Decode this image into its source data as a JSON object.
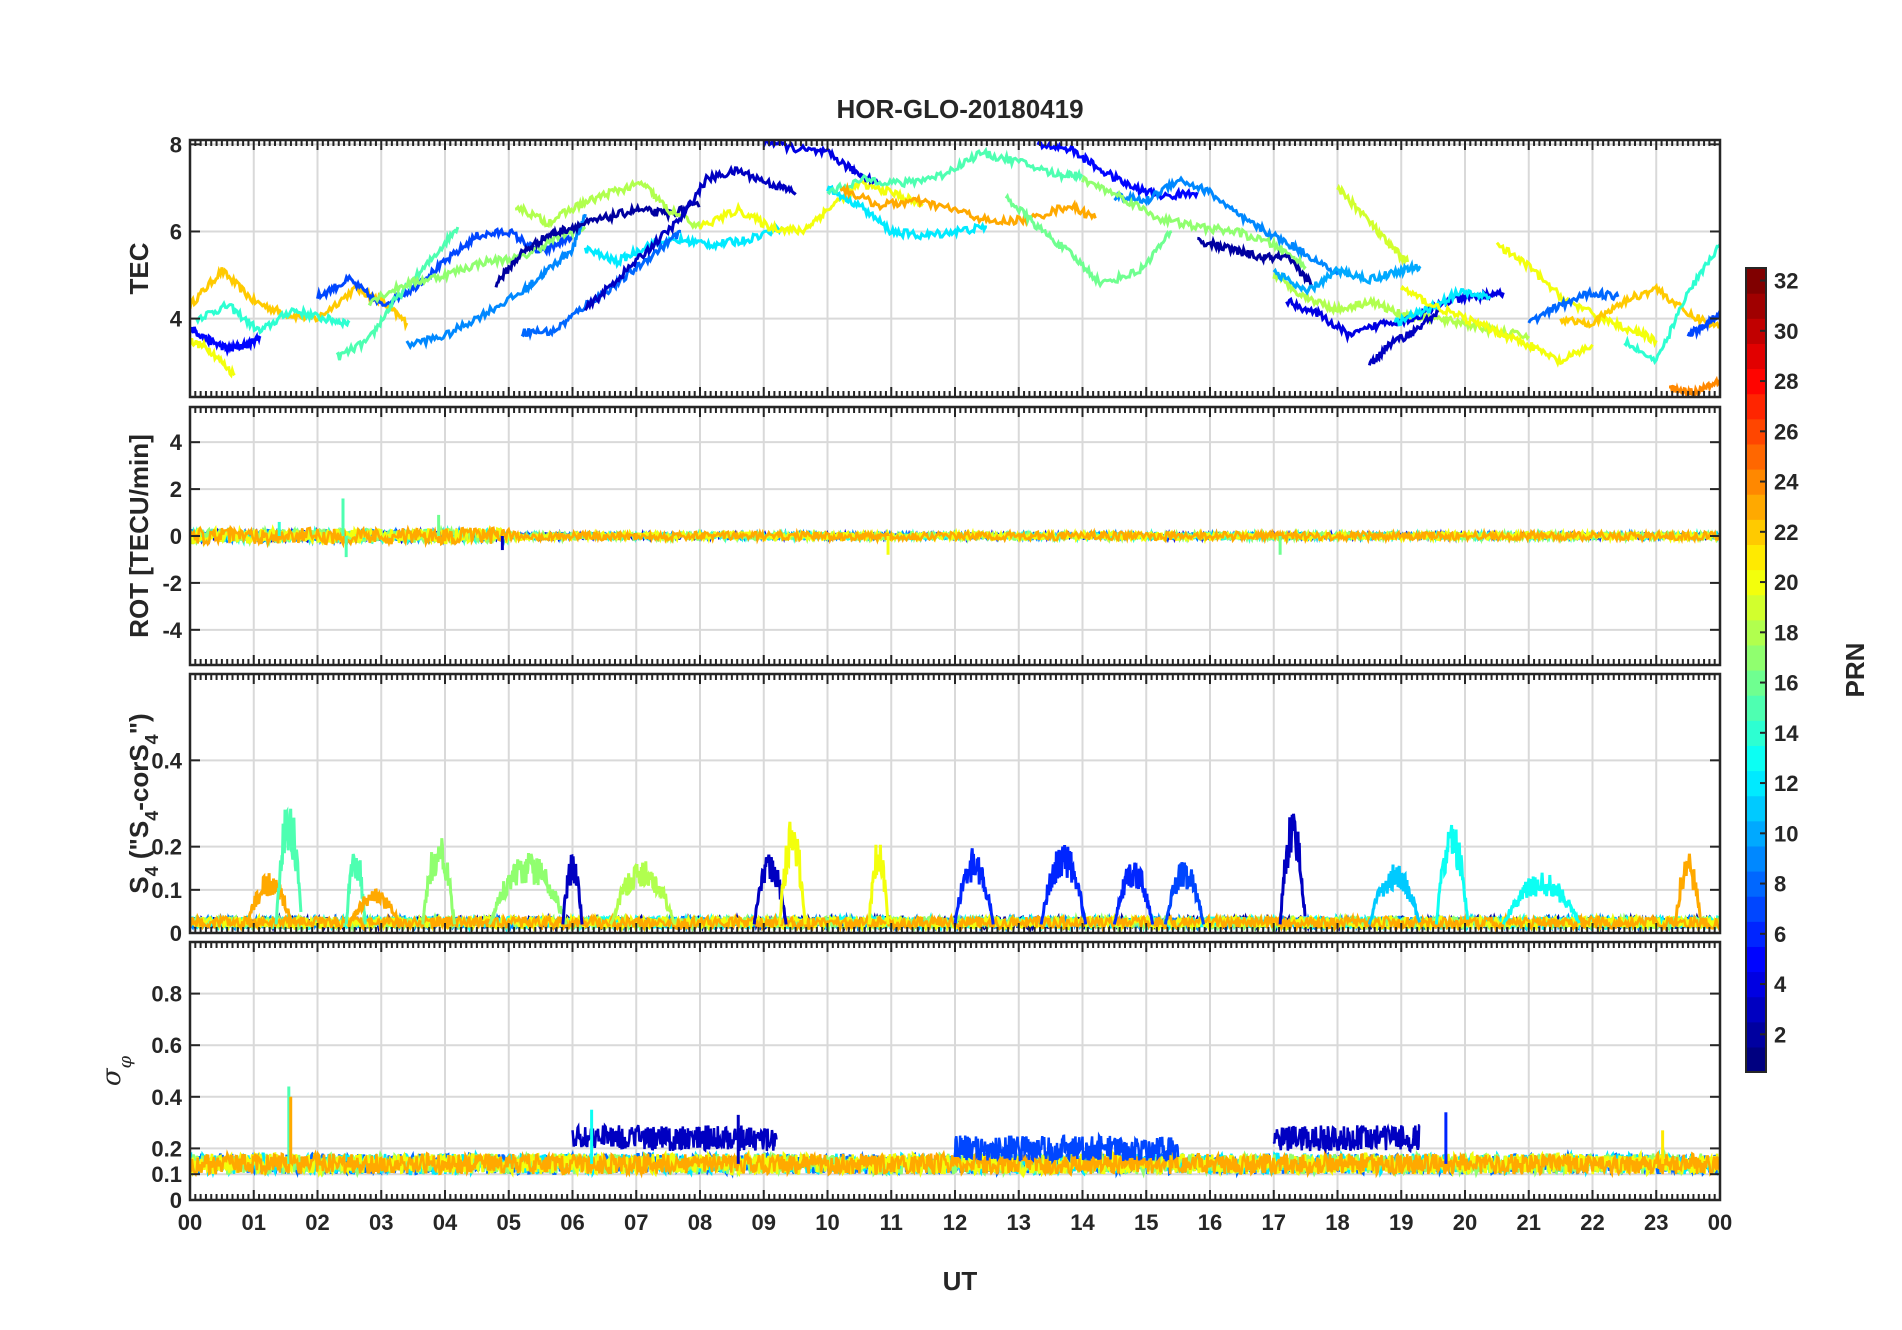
{
  "figure": {
    "title": "HOR-GLO-20180419",
    "xlabel": "UT"
  },
  "x_tick_labels": [
    "00",
    "01",
    "02",
    "03",
    "04",
    "05",
    "06",
    "07",
    "08",
    "09",
    "10",
    "11",
    "12",
    "13",
    "14",
    "15",
    "16",
    "17",
    "18",
    "19",
    "20",
    "21",
    "22",
    "23",
    "00"
  ],
  "panels": [
    {
      "id": "tec",
      "ylabel": "TEC",
      "ylim": [
        2.2,
        8.1
      ],
      "yticks": [
        4,
        6,
        8
      ],
      "ytick_labels": [
        "4",
        "6",
        "8"
      ]
    },
    {
      "id": "rot",
      "ylabel": "ROT [TECU/min]",
      "ylim": [
        -5.5,
        5.5
      ],
      "yticks": [
        -4,
        -2,
        0,
        2,
        4
      ],
      "ytick_labels": [
        "-4",
        "-2",
        "0",
        "2",
        "4"
      ]
    },
    {
      "id": "s4",
      "ylabel_parts": [
        "S",
        "4",
        " (\"S",
        "4",
        "-corS",
        "4",
        "\")"
      ],
      "ylim": [
        0,
        0.6
      ],
      "yticks": [
        0,
        0.1,
        0.2,
        0.4
      ],
      "ytick_labels": [
        "0",
        "0.1",
        "0.2",
        "0.4"
      ]
    },
    {
      "id": "sigphi",
      "ylabel_parts": [
        "σ",
        "φ"
      ],
      "ylim": [
        0,
        1
      ],
      "yticks": [
        0,
        0.1,
        0.2,
        0.4,
        0.6,
        0.8
      ],
      "ytick_labels": [
        "0",
        "0.1",
        "0.2",
        "0.4",
        "0.6",
        "0.8"
      ]
    }
  ],
  "colorbar": {
    "label": "PRN",
    "range": [
      1,
      32
    ],
    "tick_labels": [
      "2",
      "4",
      "6",
      "8",
      "10",
      "12",
      "14",
      "16",
      "18",
      "20",
      "22",
      "24",
      "26",
      "28",
      "30",
      "32"
    ],
    "tick_values": [
      2,
      4,
      6,
      8,
      10,
      12,
      14,
      16,
      18,
      20,
      22,
      24,
      26,
      28,
      30,
      32
    ],
    "colormap": "jet"
  },
  "chart_data": [
    {
      "type": "line",
      "title": "HOR-GLO-20180419",
      "xlabel": "UT",
      "ylabel": "TEC",
      "xlim": [
        0,
        24
      ],
      "ylim": [
        2.2,
        8.1
      ],
      "grid": true,
      "series": [
        {
          "prn": 22,
          "x": [
            0.0,
            0.5,
            1.0,
            1.5,
            2.0,
            2.6,
            3.0,
            3.4
          ],
          "y": [
            4.3,
            5.1,
            4.4,
            4.1,
            4.0,
            4.7,
            4.4,
            3.9
          ]
        },
        {
          "prn": 5,
          "x": [
            0.0,
            0.3,
            0.6,
            0.9,
            1.1
          ],
          "y": [
            3.8,
            3.5,
            3.3,
            3.4,
            3.6
          ]
        },
        {
          "prn": 20,
          "x": [
            0.0,
            0.3,
            0.7
          ],
          "y": [
            3.5,
            3.3,
            2.7
          ]
        },
        {
          "prn": 14,
          "x": [
            0.1,
            0.6,
            1.1,
            1.6,
            2.1,
            2.5
          ],
          "y": [
            4.0,
            4.3,
            3.7,
            4.2,
            4.0,
            3.9
          ]
        },
        {
          "prn": 7,
          "x": [
            2.0,
            2.5,
            3.0,
            3.5,
            4.0,
            4.5,
            5.0,
            5.5,
            6.0
          ],
          "y": [
            4.5,
            4.9,
            4.3,
            4.7,
            5.3,
            5.9,
            6.0,
            5.5,
            5.9
          ]
        },
        {
          "prn": 15,
          "x": [
            2.3,
            2.8,
            3.2,
            3.7,
            4.2
          ],
          "y": [
            3.1,
            3.5,
            4.4,
            5.2,
            6.1
          ]
        },
        {
          "prn": 17,
          "x": [
            2.8,
            3.4,
            4.0,
            4.6,
            5.2,
            5.8,
            6.2
          ],
          "y": [
            4.4,
            4.8,
            5.0,
            5.3,
            5.4,
            5.9,
            6.1
          ]
        },
        {
          "prn": 9,
          "x": [
            3.4,
            4.0,
            4.6,
            5.2,
            5.6,
            6.0,
            6.2
          ],
          "y": [
            3.4,
            3.6,
            4.1,
            4.6,
            5.1,
            5.6,
            6.4
          ]
        },
        {
          "prn": 2,
          "x": [
            4.8,
            5.2,
            5.6,
            6.0,
            6.5,
            7.0,
            7.5,
            8.0
          ],
          "y": [
            4.8,
            5.5,
            5.9,
            6.1,
            6.3,
            6.5,
            6.4,
            6.6
          ]
        },
        {
          "prn": 18,
          "x": [
            5.1,
            5.6,
            6.1,
            6.6,
            7.1,
            7.5,
            8.0
          ],
          "y": [
            6.6,
            6.2,
            6.6,
            6.9,
            7.1,
            6.5,
            6.1
          ]
        },
        {
          "prn": 12,
          "x": [
            6.2,
            6.7,
            7.2,
            7.7,
            8.2,
            8.7,
            9.3
          ],
          "y": [
            5.6,
            5.3,
            5.7,
            5.8,
            5.7,
            5.8,
            6.1
          ]
        },
        {
          "prn": 8,
          "x": [
            5.2,
            5.7,
            6.2,
            6.7,
            7.2,
            7.7
          ],
          "y": [
            3.7,
            3.7,
            4.3,
            4.8,
            5.4,
            6.0
          ]
        },
        {
          "prn": 3,
          "x": [
            6.2,
            6.7,
            7.2,
            7.7,
            8.1,
            8.6,
            9.1,
            9.5
          ],
          "y": [
            4.2,
            4.9,
            5.6,
            6.3,
            7.2,
            7.4,
            7.1,
            6.9
          ]
        },
        {
          "prn": 20,
          "x": [
            8.0,
            8.6,
            9.1,
            9.6,
            10.0,
            10.5,
            11.0,
            11.5
          ],
          "y": [
            6.1,
            6.5,
            6.1,
            6.0,
            6.5,
            7.1,
            6.9,
            6.6
          ]
        },
        {
          "prn": 4,
          "x": [
            9.0,
            9.5,
            10.0,
            10.4,
            10.8
          ],
          "y": [
            8.1,
            7.9,
            7.8,
            7.4,
            7.1
          ]
        },
        {
          "prn": 12,
          "x": [
            10.0,
            10.5,
            11.0,
            11.5,
            12.0,
            12.5
          ],
          "y": [
            7.0,
            6.6,
            6.0,
            5.9,
            6.0,
            6.1
          ]
        },
        {
          "prn": 15,
          "x": [
            10.0,
            10.6,
            11.2,
            11.8,
            12.4,
            13.0,
            13.6,
            14.0
          ],
          "y": [
            6.9,
            7.2,
            7.1,
            7.3,
            7.8,
            7.6,
            7.3,
            7.3
          ]
        },
        {
          "prn": 23,
          "x": [
            10.2,
            10.8,
            11.4,
            12.0,
            12.6,
            13.2,
            13.8,
            14.2
          ],
          "y": [
            7.0,
            6.6,
            6.7,
            6.5,
            6.2,
            6.3,
            6.6,
            6.3
          ]
        },
        {
          "prn": 16,
          "x": [
            12.8,
            13.3,
            13.8,
            14.3,
            14.9,
            15.4
          ],
          "y": [
            6.8,
            6.1,
            5.5,
            4.8,
            5.1,
            6.0
          ]
        },
        {
          "prn": 5,
          "x": [
            13.3,
            13.8,
            14.3,
            14.8,
            15.3,
            15.8
          ],
          "y": [
            8.0,
            7.9,
            7.4,
            7.0,
            6.8,
            6.9
          ]
        },
        {
          "prn": 9,
          "x": [
            14.5,
            15.0,
            15.5,
            16.0,
            16.5,
            17.0,
            17.5,
            18.0
          ],
          "y": [
            6.8,
            6.7,
            7.2,
            6.9,
            6.3,
            5.9,
            5.5,
            5.0
          ]
        },
        {
          "prn": 17,
          "x": [
            14.0,
            14.6,
            15.2,
            15.8,
            16.4,
            17.0,
            17.5
          ],
          "y": [
            7.2,
            6.8,
            6.3,
            6.1,
            6.0,
            5.7,
            5.2
          ]
        },
        {
          "prn": 2,
          "x": [
            15.8,
            16.3,
            16.8,
            17.2,
            17.6
          ],
          "y": [
            5.8,
            5.6,
            5.4,
            5.4,
            4.8
          ]
        },
        {
          "prn": 18,
          "x": [
            17.0,
            17.5,
            18.0,
            18.5,
            19.0,
            19.5,
            20.0,
            20.5,
            21.0
          ],
          "y": [
            5.0,
            4.5,
            4.2,
            4.4,
            4.1,
            4.0,
            3.9,
            3.7,
            3.6
          ]
        },
        {
          "prn": 19,
          "x": [
            18.0,
            18.4,
            18.8,
            19.1
          ],
          "y": [
            7.0,
            6.4,
            5.7,
            5.3
          ]
        },
        {
          "prn": 10,
          "x": [
            17.0,
            17.5,
            18.0,
            18.5,
            19.0,
            19.3
          ],
          "y": [
            5.1,
            4.6,
            5.1,
            4.9,
            5.1,
            5.2
          ]
        },
        {
          "prn": 4,
          "x": [
            17.2,
            17.7,
            18.2,
            18.7,
            19.2,
            19.7,
            20.2,
            20.6
          ],
          "y": [
            4.4,
            4.1,
            3.6,
            3.9,
            4.0,
            4.4,
            4.5,
            4.6
          ]
        },
        {
          "prn": 3,
          "x": [
            18.5,
            18.8,
            19.2,
            19.6
          ],
          "y": [
            2.9,
            3.4,
            3.7,
            4.2
          ]
        },
        {
          "prn": 12,
          "x": [
            18.9,
            19.4,
            19.9,
            20.4
          ],
          "y": [
            3.9,
            4.2,
            4.6,
            4.5
          ]
        },
        {
          "prn": 20,
          "x": [
            19.0,
            19.5,
            20.0,
            20.5,
            21.0,
            21.5,
            22.0
          ],
          "y": [
            4.7,
            4.3,
            4.0,
            3.7,
            3.4,
            3.0,
            3.4
          ]
        },
        {
          "prn": 20,
          "x": [
            20.5,
            21.0,
            21.5,
            22.0,
            22.5,
            23.0
          ],
          "y": [
            5.7,
            5.2,
            4.5,
            4.1,
            3.8,
            3.5
          ]
        },
        {
          "prn": 8,
          "x": [
            21.0,
            21.5,
            22.0,
            22.4
          ],
          "y": [
            3.9,
            4.3,
            4.6,
            4.5
          ]
        },
        {
          "prn": 22,
          "x": [
            21.5,
            22.0,
            22.5,
            23.0,
            23.5,
            24.0
          ],
          "y": [
            4.0,
            3.9,
            4.4,
            4.7,
            4.1,
            3.8
          ]
        },
        {
          "prn": 24,
          "x": [
            23.2,
            23.6,
            24.0
          ],
          "y": [
            2.4,
            2.3,
            2.6
          ]
        },
        {
          "prn": 14,
          "x": [
            22.5,
            23.0,
            23.5,
            24.0
          ],
          "y": [
            3.5,
            3.0,
            4.6,
            5.7
          ]
        },
        {
          "prn": 7,
          "x": [
            23.5,
            23.8,
            24.0
          ],
          "y": [
            3.6,
            3.9,
            4.1
          ]
        }
      ]
    },
    {
      "type": "line",
      "xlabel": "UT",
      "ylabel": "ROT [TECU/min]",
      "xlim": [
        0,
        24
      ],
      "ylim": [
        -5.5,
        5.5
      ],
      "grid": true,
      "baseline": 0,
      "noise_amplitude": [
        {
          "x_range": [
            0,
            5
          ],
          "amplitude": 0.35
        },
        {
          "x_range": [
            5,
            24
          ],
          "amplitude": 0.18
        }
      ],
      "spikes": [
        {
          "x": 2.4,
          "y": 1.6,
          "prn": 15
        },
        {
          "x": 2.45,
          "y": -0.9,
          "prn": 15
        },
        {
          "x": 3.9,
          "y": 0.9,
          "prn": 16
        },
        {
          "x": 4.9,
          "y": -0.6,
          "prn": 3
        },
        {
          "x": 10.95,
          "y": -0.8,
          "prn": 20
        },
        {
          "x": 17.1,
          "y": -0.8,
          "prn": 16
        },
        {
          "x": 1.4,
          "y": 0.6,
          "prn": 14
        }
      ]
    },
    {
      "type": "line",
      "xlabel": "UT",
      "ylabel": "S4 (\"S4-corS4\")",
      "xlim": [
        0,
        24
      ],
      "ylim": [
        0,
        0.6
      ],
      "grid": true,
      "baseline_range": [
        0.01,
        0.05
      ],
      "events": [
        {
          "x": 1.25,
          "w": 0.35,
          "h": 0.12,
          "prn": 23
        },
        {
          "x": 1.55,
          "w": 0.2,
          "h": 0.3,
          "prn": 15
        },
        {
          "x": 2.6,
          "w": 0.15,
          "h": 0.19,
          "prn": 15
        },
        {
          "x": 2.9,
          "w": 0.4,
          "h": 0.08,
          "prn": 23
        },
        {
          "x": 3.9,
          "w": 0.25,
          "h": 0.21,
          "prn": 17
        },
        {
          "x": 5.3,
          "w": 0.6,
          "h": 0.17,
          "prn": 17
        },
        {
          "x": 6.0,
          "w": 0.15,
          "h": 0.17,
          "prn": 3
        },
        {
          "x": 7.1,
          "w": 0.5,
          "h": 0.15,
          "prn": 18
        },
        {
          "x": 9.1,
          "w": 0.25,
          "h": 0.17,
          "prn": 3
        },
        {
          "x": 9.45,
          "w": 0.2,
          "h": 0.25,
          "prn": 20
        },
        {
          "x": 10.8,
          "w": 0.15,
          "h": 0.2,
          "prn": 20
        },
        {
          "x": 12.3,
          "w": 0.3,
          "h": 0.18,
          "prn": 6
        },
        {
          "x": 13.7,
          "w": 0.35,
          "h": 0.19,
          "prn": 6
        },
        {
          "x": 14.8,
          "w": 0.3,
          "h": 0.15,
          "prn": 6
        },
        {
          "x": 15.6,
          "w": 0.3,
          "h": 0.15,
          "prn": 7
        },
        {
          "x": 17.3,
          "w": 0.2,
          "h": 0.27,
          "prn": 3
        },
        {
          "x": 18.9,
          "w": 0.4,
          "h": 0.14,
          "prn": 11
        },
        {
          "x": 19.8,
          "w": 0.25,
          "h": 0.24,
          "prn": 13
        },
        {
          "x": 21.2,
          "w": 0.6,
          "h": 0.12,
          "prn": 13
        },
        {
          "x": 23.5,
          "w": 0.2,
          "h": 0.17,
          "prn": 23
        }
      ]
    },
    {
      "type": "line",
      "xlabel": "UT",
      "ylabel": "σφ",
      "xlim": [
        0,
        24
      ],
      "ylim": [
        0,
        1
      ],
      "grid": true,
      "baseline_range": [
        0.1,
        0.18
      ],
      "elevated_blocks": [
        {
          "x_range": [
            6.0,
            9.2
          ],
          "y": 0.24,
          "prn": 3
        },
        {
          "x_range": [
            17.0,
            19.3
          ],
          "y": 0.24,
          "prn": 3
        },
        {
          "x_range": [
            12.0,
            15.5
          ],
          "y": 0.2,
          "prn": 7
        }
      ],
      "spikes": [
        {
          "x": 1.55,
          "y": 0.44,
          "prn": 15
        },
        {
          "x": 1.58,
          "y": 0.4,
          "prn": 23
        },
        {
          "x": 6.3,
          "y": 0.35,
          "prn": 13
        },
        {
          "x": 19.7,
          "y": 0.34,
          "prn": 6
        },
        {
          "x": 8.6,
          "y": 0.33,
          "prn": 3
        },
        {
          "x": 23.1,
          "y": 0.27,
          "prn": 21
        }
      ]
    }
  ]
}
